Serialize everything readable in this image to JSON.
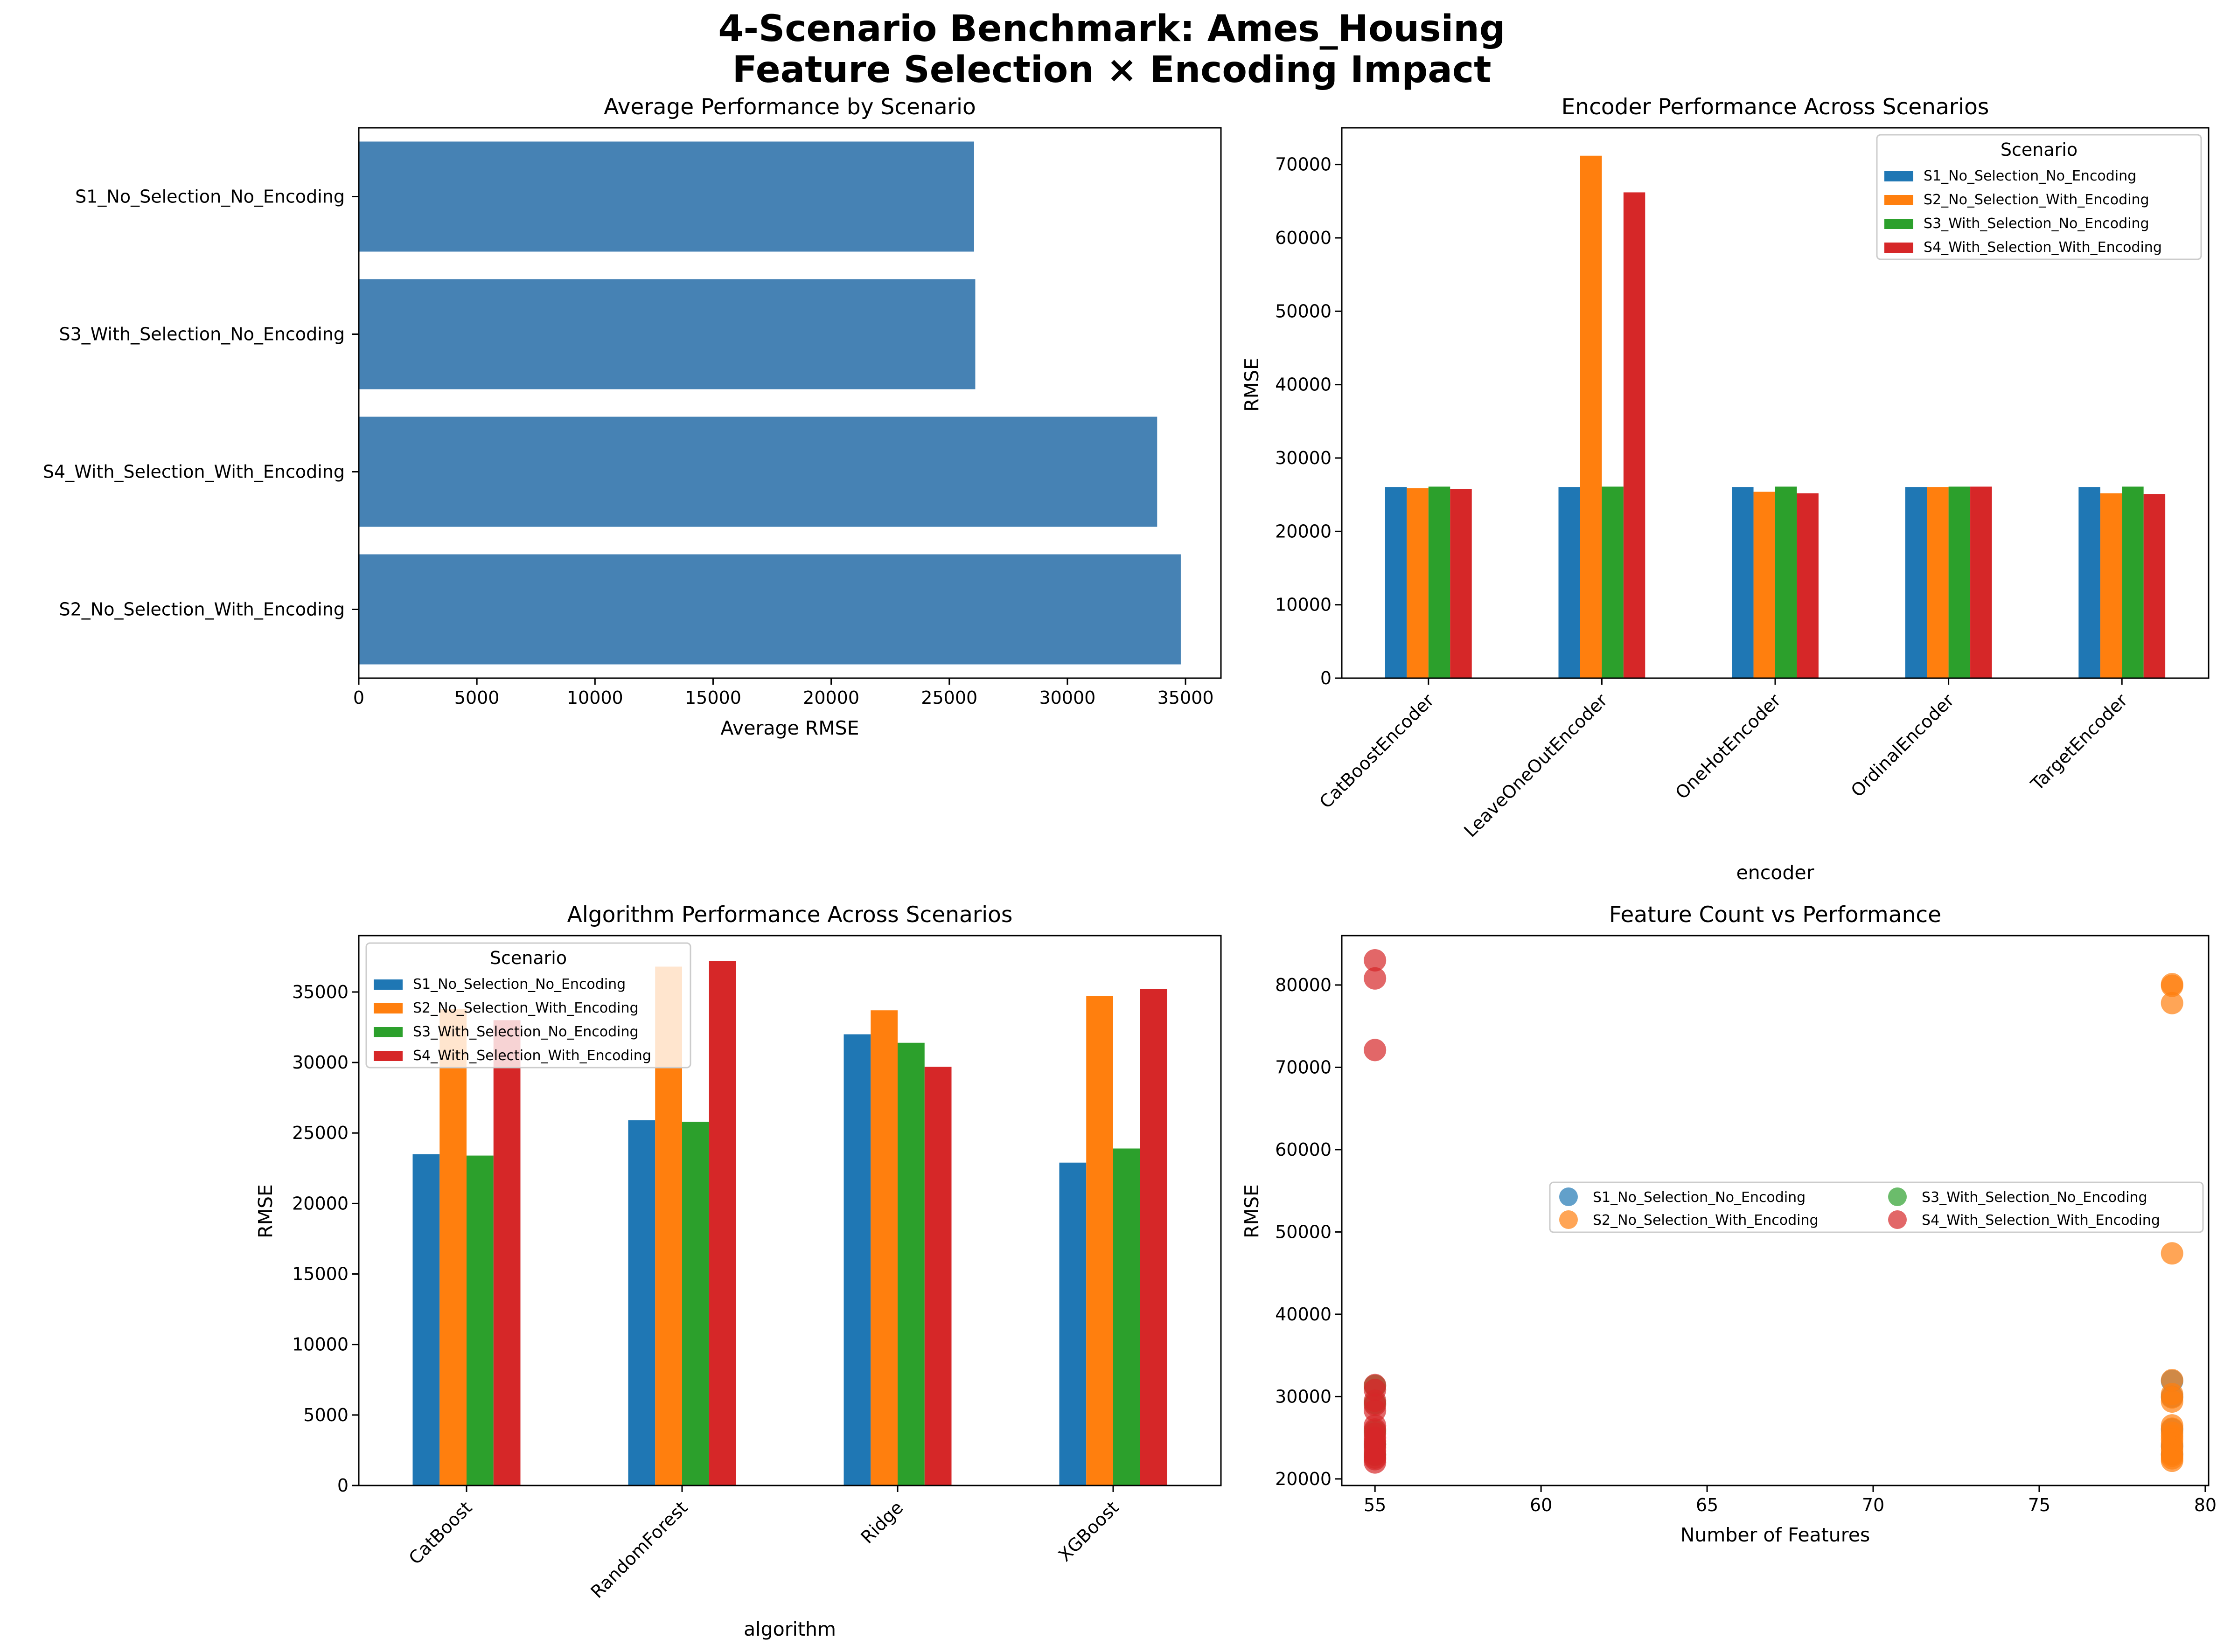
{
  "figure": {
    "title_line1": "4-Scenario Benchmark: Ames_Housing",
    "title_line2": "Feature Selection × Encoding Impact"
  },
  "colors": {
    "S1_No_Selection_No_Encoding": "#1f77b4",
    "S2_No_Selection_With_Encoding": "#ff7f0e",
    "S3_With_Selection_No_Encoding": "#2ca02c",
    "S4_With_Selection_With_Encoding": "#d62728",
    "avg_bar": "#4682b4"
  },
  "chart_data": [
    {
      "id": "avg",
      "type": "bar",
      "orientation": "horizontal",
      "title": "Average Performance by Scenario",
      "xlabel": "Average RMSE",
      "ylabel": "",
      "categories": [
        "S1_No_Selection_No_Encoding",
        "S3_With_Selection_No_Encoding",
        "S4_With_Selection_With_Encoding",
        "S2_No_Selection_With_Encoding"
      ],
      "values": [
        26050,
        26100,
        33800,
        34800
      ],
      "xlim": [
        0,
        36500
      ],
      "xticks": [
        0,
        5000,
        10000,
        15000,
        20000,
        25000,
        30000,
        35000
      ]
    },
    {
      "id": "encoder",
      "type": "bar",
      "title": "Encoder Performance Across Scenarios",
      "xlabel": "encoder",
      "ylabel": "RMSE",
      "categories": [
        "CatBoostEncoder",
        "LeaveOneOutEncoder",
        "OneHotEncoder",
        "OrdinalEncoder",
        "TargetEncoder"
      ],
      "series": [
        {
          "name": "S1_No_Selection_No_Encoding",
          "values": [
            26050,
            26050,
            26050,
            26050,
            26050
          ]
        },
        {
          "name": "S2_No_Selection_With_Encoding",
          "values": [
            25900,
            71200,
            25400,
            26050,
            25200
          ]
        },
        {
          "name": "S3_With_Selection_No_Encoding",
          "values": [
            26100,
            26100,
            26100,
            26100,
            26100
          ]
        },
        {
          "name": "S4_With_Selection_With_Encoding",
          "values": [
            25800,
            66200,
            25200,
            26100,
            25100
          ]
        }
      ],
      "ylim": [
        0,
        75000
      ],
      "yticks": [
        0,
        10000,
        20000,
        30000,
        40000,
        50000,
        60000,
        70000
      ],
      "legend": {
        "title": "Scenario",
        "position": "top-right"
      }
    },
    {
      "id": "algorithm",
      "type": "bar",
      "title": "Algorithm Performance Across Scenarios",
      "xlabel": "algorithm",
      "ylabel": "RMSE",
      "categories": [
        "CatBoost",
        "RandomForest",
        "Ridge",
        "XGBoost"
      ],
      "series": [
        {
          "name": "S1_No_Selection_No_Encoding",
          "values": [
            23500,
            25900,
            32000,
            22900
          ]
        },
        {
          "name": "S2_No_Selection_With_Encoding",
          "values": [
            33800,
            36800,
            33700,
            34700
          ]
        },
        {
          "name": "S3_With_Selection_No_Encoding",
          "values": [
            23400,
            25800,
            31400,
            23900
          ]
        },
        {
          "name": "S4_With_Selection_With_Encoding",
          "values": [
            33000,
            37200,
            29700,
            35200
          ]
        }
      ],
      "ylim": [
        0,
        39000
      ],
      "yticks": [
        0,
        5000,
        10000,
        15000,
        20000,
        25000,
        30000,
        35000
      ],
      "legend": {
        "title": "Scenario",
        "position": "top-left"
      }
    },
    {
      "id": "scatter",
      "type": "scatter",
      "title": "Feature Count vs Performance",
      "xlabel": "Number of Features",
      "ylabel": "RMSE",
      "series": [
        {
          "name": "S1_No_Selection_No_Encoding",
          "x": [
            79,
            79,
            79,
            79,
            79
          ],
          "y": [
            31900,
            30000,
            26000,
            24000,
            23000
          ]
        },
        {
          "name": "S2_No_Selection_With_Encoding",
          "x": [
            79,
            79,
            79,
            79,
            79,
            79,
            79,
            79,
            79,
            79,
            79,
            79,
            79,
            79,
            79,
            79,
            79,
            79,
            79,
            79
          ],
          "y": [
            80100,
            79900,
            77800,
            47400,
            32000,
            30300,
            29400,
            29900,
            26500,
            26100,
            25600,
            25200,
            24800,
            24300,
            23900,
            23500,
            23000,
            22800,
            22500,
            22200
          ]
        },
        {
          "name": "S3_With_Selection_No_Encoding",
          "x": [
            55,
            55,
            55,
            55,
            55
          ],
          "y": [
            31300,
            29200,
            25800,
            24200,
            22900
          ]
        },
        {
          "name": "S4_With_Selection_With_Encoding",
          "x": [
            55,
            55,
            55,
            55,
            55,
            55,
            55,
            55,
            55,
            55,
            55,
            55,
            55,
            55,
            55,
            55,
            55,
            55,
            55,
            55
          ],
          "y": [
            83000,
            80800,
            72100,
            31400,
            30800,
            29500,
            29000,
            28300,
            26500,
            26000,
            25500,
            25000,
            24600,
            24200,
            23800,
            23400,
            23000,
            22600,
            22400,
            22000
          ]
        }
      ],
      "xlim": [
        54,
        80.1
      ],
      "ylim": [
        19200,
        86000
      ],
      "xticks": [
        55,
        60,
        65,
        70,
        75,
        80
      ],
      "yticks": [
        20000,
        30000,
        40000,
        50000,
        60000,
        70000,
        80000
      ],
      "legend": {
        "position": "center-right",
        "columns": 2
      }
    }
  ]
}
